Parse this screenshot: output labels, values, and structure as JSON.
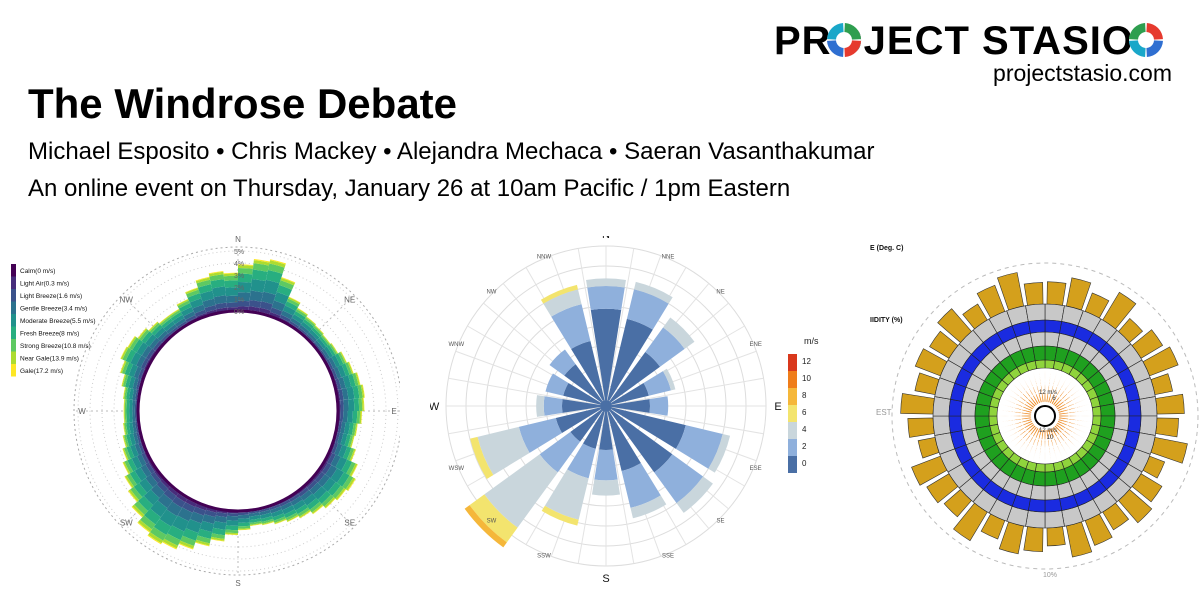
{
  "header": {
    "brand": "PROJECT STASIO",
    "site": "projectstasio.com",
    "title": "The Windrose Debate",
    "authors": "Michael Esposito • Chris Mackey • Alejandra Mechaca • Saeran Vasanthakumar",
    "event": "An online event on Thursday, January 26 at 10am Pacific / 1pm Eastern"
  },
  "logo_colors": [
    "#2e9e4f",
    "#e63a2e",
    "#2f6fd1",
    "#19a7c9"
  ],
  "chart_data": [
    {
      "type": "wind rose",
      "directions": [
        "N",
        "NE",
        "E",
        "SE",
        "S",
        "SW",
        "W",
        "NW"
      ],
      "radial_labels": [
        "0%",
        "1%",
        "2%",
        "3%",
        "4%",
        "5%"
      ],
      "legend_position": "top-left",
      "legend": [
        {
          "label": "Calm(0 m/s)",
          "color": "#440154"
        },
        {
          "label": "Light Air(0.3 m/s)",
          "color": "#472d7b"
        },
        {
          "label": "Light Breeze(1.6 m/s)",
          "color": "#3b528b"
        },
        {
          "label": "Gentle Breeze(3.4 m/s)",
          "color": "#2c728e"
        },
        {
          "label": "Moderate Breeze(5.5 m/s)",
          "color": "#21918c"
        },
        {
          "label": "Fresh Breeze(8 m/s)",
          "color": "#28ae80"
        },
        {
          "label": "Strong Breeze(10.8 m/s)",
          "color": "#5ec962"
        },
        {
          "label": "Near Gale(13.9 m/s)",
          "color": "#addc30"
        },
        {
          "label": "Gale(17.2 m/s)",
          "color": "#fde725"
        }
      ],
      "sector_frequency_pct": [
        3.9,
        4.4,
        4.6,
        3.4,
        2.1,
        1.6,
        1.4,
        1.3,
        1.2,
        1.3,
        1.6,
        1.8,
        2.1,
        2.3,
        2.2,
        2.0,
        1.7,
        1.6,
        2.0,
        2.6,
        3.0,
        2.8,
        2.6,
        2.3,
        2.0,
        1.8,
        1.6,
        1.4,
        1.3,
        1.6,
        2.0,
        2.6,
        3.2,
        3.8,
        4.3,
        4.5,
        4.2,
        3.6,
        3.0,
        2.6,
        2.2,
        1.8,
        1.5,
        1.3,
        1.2,
        1.2,
        1.3,
        1.6,
        2.0,
        2.4,
        2.3,
        2.0,
        1.7,
        1.5,
        1.5,
        1.9,
        2.5,
        3.1,
        3.4,
        3.2
      ]
    },
    {
      "type": "wind rose",
      "directions": [
        "N",
        "NNE",
        "NE",
        "ENE",
        "E",
        "ESE",
        "SE",
        "SSE",
        "S",
        "SSW",
        "SW",
        "WSW",
        "W",
        "WNW",
        "NW",
        "NNW"
      ],
      "legend_title": "m/s",
      "legend_ticks": [
        "12",
        "10",
        "8",
        "6",
        "4",
        "2",
        "0"
      ],
      "legend_colors": [
        "#4a6fa5",
        "#8fb0dc",
        "#c9d6dc",
        "#f3e46e",
        "#f5b73a",
        "#ef7d1a",
        "#d9381c"
      ],
      "sector_values": [
        {
          "dir": 0,
          "v": [
            0.6,
            0.15,
            0.05,
            0,
            0,
            0,
            0
          ]
        },
        {
          "dir": 22.5,
          "v": [
            0.55,
            0.2,
            0.05,
            0,
            0,
            0,
            0
          ]
        },
        {
          "dir": 45,
          "v": [
            0.4,
            0.2,
            0.08,
            0,
            0,
            0,
            0
          ]
        },
        {
          "dir": 67.5,
          "v": [
            0.25,
            0.15,
            0.03,
            0,
            0,
            0,
            0
          ]
        },
        {
          "dir": 90,
          "v": [
            0.25,
            0.12,
            0,
            0,
            0,
            0,
            0
          ]
        },
        {
          "dir": 112.5,
          "v": [
            0.5,
            0.25,
            0.05,
            0,
            0,
            0,
            0
          ]
        },
        {
          "dir": 135,
          "v": [
            0.5,
            0.25,
            0.08,
            0,
            0,
            0,
            0
          ]
        },
        {
          "dir": 157.5,
          "v": [
            0.4,
            0.25,
            0.07,
            0,
            0,
            0,
            0
          ]
        },
        {
          "dir": 180,
          "v": [
            0.25,
            0.2,
            0.1,
            0,
            0,
            0,
            0
          ]
        },
        {
          "dir": 202.5,
          "v": [
            0.25,
            0.2,
            0.28,
            0.04,
            0,
            0,
            0
          ]
        },
        {
          "dir": 225,
          "v": [
            0.25,
            0.25,
            0.45,
            0.12,
            0.04,
            0,
            0
          ]
        },
        {
          "dir": 247.5,
          "v": [
            0.3,
            0.25,
            0.28,
            0.05,
            0,
            0,
            0
          ]
        },
        {
          "dir": 270,
          "v": [
            0.25,
            0.12,
            0.05,
            0,
            0,
            0,
            0
          ]
        },
        {
          "dir": 292.5,
          "v": [
            0.25,
            0.12,
            0,
            0,
            0,
            0,
            0
          ]
        },
        {
          "dir": 315,
          "v": [
            0.3,
            0.12,
            0,
            0,
            0,
            0,
            0
          ]
        },
        {
          "dir": 337.5,
          "v": [
            0.4,
            0.25,
            0.1,
            0.03,
            0,
            0,
            0
          ]
        }
      ]
    },
    {
      "type": "radial chart",
      "visible_labels": [
        "E (Deg. C)",
        "IIDITY (%)",
        "EST",
        "10%",
        "12 m/s",
        "12 m/s",
        "10",
        "6"
      ],
      "ring_colors": [
        "#d4a01c",
        "#c8c8c8",
        "#1a2be0",
        "#c8c8c8",
        "#1fa01f",
        "#8fd43c",
        "#ee8a22"
      ],
      "outer_bar_values": [
        0.62,
        0.8,
        0.55,
        0.9,
        0.48,
        0.7,
        0.85,
        0.5,
        0.76,
        0.6,
        0.92,
        0.45,
        0.68,
        0.82,
        0.58,
        0.74,
        0.88,
        0.5,
        0.66,
        0.79,
        0.55,
        0.93,
        0.6,
        0.72,
        0.86,
        0.48,
        0.7,
        0.9,
        0.57,
        0.75,
        0.63,
        0.84,
        0.52,
        0.78,
        0.95,
        0.6
      ]
    }
  ]
}
